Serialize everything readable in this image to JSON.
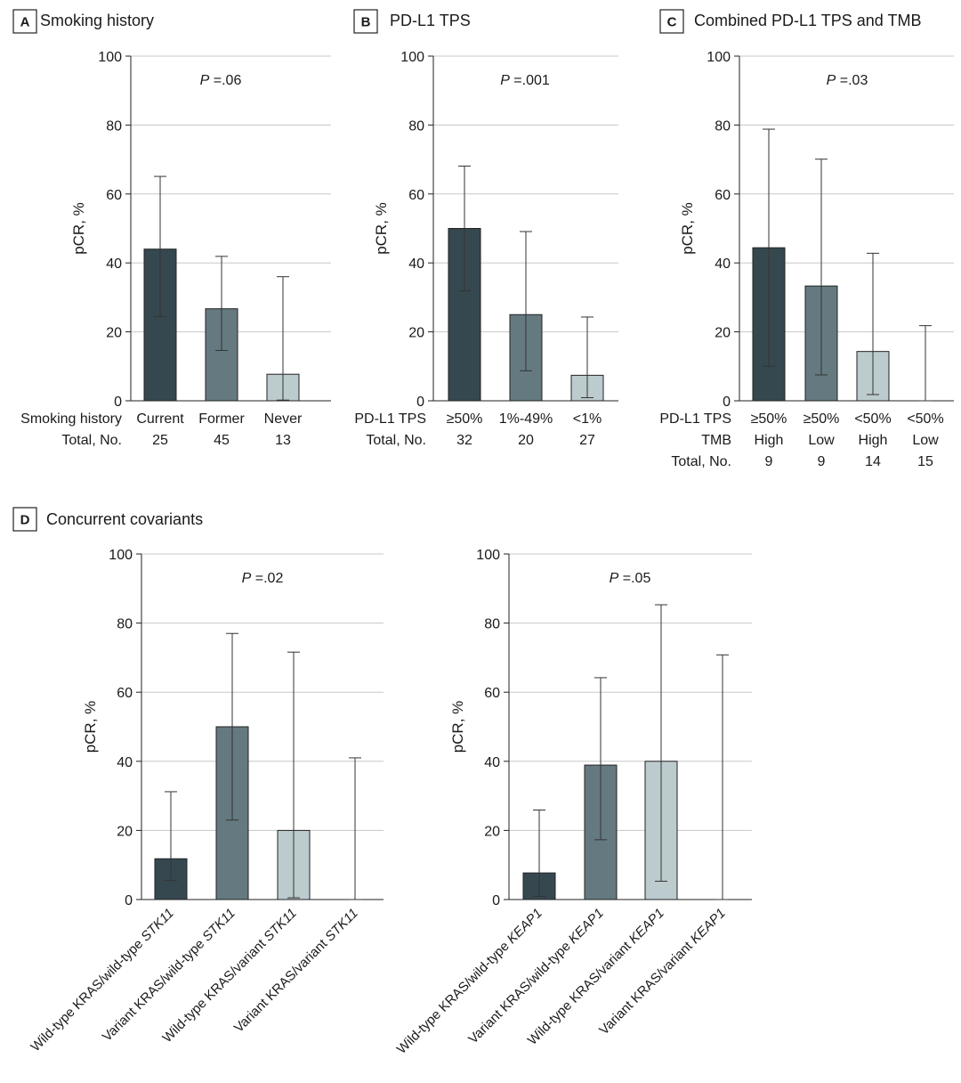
{
  "colors": {
    "dark": "#36484f",
    "mid": "#647a80",
    "light": "#bccbce"
  },
  "chart_data": [
    {
      "id": "A",
      "type": "bar",
      "panel_letter": "A",
      "title": "Smoking history",
      "ylabel": "pCR, %",
      "ylim": [
        0,
        100
      ],
      "yticks": [
        0,
        20,
        40,
        60,
        80,
        100
      ],
      "grid": true,
      "pvalue": {
        "p": "P",
        "rest": " =.06"
      },
      "row_labels": [
        "Smoking history",
        "Total, No."
      ],
      "categories": [
        "Current",
        "Former",
        "Never"
      ],
      "totals": [
        "25",
        "45",
        "13"
      ],
      "values": [
        44,
        26.7,
        7.7
      ],
      "ci_low": [
        24.4,
        14.6,
        0.2
      ],
      "ci_high": [
        65.1,
        41.9,
        36
      ],
      "colors": [
        "dark",
        "mid",
        "light"
      ]
    },
    {
      "id": "B",
      "type": "bar",
      "panel_letter": "B",
      "title": "PD-L1 TPS",
      "ylabel": "pCR, %",
      "ylim": [
        0,
        100
      ],
      "yticks": [
        0,
        20,
        40,
        60,
        80,
        100
      ],
      "grid": true,
      "pvalue": {
        "p": "P",
        "rest": " =.001"
      },
      "row_labels": [
        "PD-L1 TPS",
        "Total, No."
      ],
      "categories": [
        "≥50%",
        "1%-49%",
        "<1%"
      ],
      "totals": [
        "32",
        "20",
        "27"
      ],
      "values": [
        50,
        25,
        7.4
      ],
      "ci_low": [
        31.9,
        8.7,
        0.9
      ],
      "ci_high": [
        68.1,
        49.1,
        24.3
      ],
      "colors": [
        "dark",
        "mid",
        "light"
      ]
    },
    {
      "id": "C",
      "type": "bar",
      "panel_letter": "C",
      "title": "Combined PD-L1 TPS and TMB",
      "ylabel": "pCR, %",
      "ylim": [
        0,
        100
      ],
      "yticks": [
        0,
        20,
        40,
        60,
        80,
        100
      ],
      "grid": true,
      "pvalue": {
        "p": "P",
        "rest": " =.03"
      },
      "row_labels": [
        "PD-L1 TPS",
        "TMB",
        "Total, No."
      ],
      "categories": [
        "≥50%",
        "≥50%",
        "<50%",
        "<50%"
      ],
      "tmb": [
        "High",
        "Low",
        "High",
        "Low"
      ],
      "totals": [
        "9",
        "9",
        "14",
        "15"
      ],
      "values": [
        44.4,
        33.3,
        14.3,
        0
      ],
      "ci_low": [
        10,
        7.5,
        1.8,
        0
      ],
      "ci_high": [
        78.8,
        70.1,
        42.8,
        21.8
      ],
      "colors": [
        "dark",
        "mid",
        "light",
        "light"
      ]
    },
    {
      "id": "D1",
      "type": "bar",
      "panel_letter": "D",
      "title": "Concurrent covariants",
      "ylabel": "pCR, %",
      "ylim": [
        0,
        100
      ],
      "yticks": [
        0,
        20,
        40,
        60,
        80,
        100
      ],
      "grid": true,
      "pvalue": {
        "p": "P",
        "rest": " =.02"
      },
      "categories": [
        [
          {
            "t": "Wild-type KRAS/wild-type "
          },
          {
            "t": "STK11",
            "i": true
          }
        ],
        [
          {
            "t": "Variant KRAS/wild-type "
          },
          {
            "t": "STK11",
            "i": true
          }
        ],
        [
          {
            "t": "Wild-type KRAS/variant "
          },
          {
            "t": "STK11",
            "i": true
          }
        ],
        [
          {
            "t": "Variant KRAS/variant "
          },
          {
            "t": "STK11",
            "i": true
          }
        ]
      ],
      "values": [
        11.8,
        50,
        20,
        0
      ],
      "ci_low": [
        5.5,
        23,
        0.5,
        0
      ],
      "ci_high": [
        31.2,
        77,
        71.6,
        41
      ],
      "colors": [
        "dark",
        "mid",
        "light",
        "light"
      ]
    },
    {
      "id": "D2",
      "type": "bar",
      "ylabel": "pCR, %",
      "ylim": [
        0,
        100
      ],
      "yticks": [
        0,
        20,
        40,
        60,
        80,
        100
      ],
      "grid": true,
      "pvalue": {
        "p": "P",
        "rest": " =.05"
      },
      "categories": [
        [
          {
            "t": "Wild-type KRAS/wild-type "
          },
          {
            "t": "KEAP1",
            "i": true
          }
        ],
        [
          {
            "t": "Variant KRAS/wild-type "
          },
          {
            "t": "KEAP1",
            "i": true
          }
        ],
        [
          {
            "t": "Wild-type KRAS/variant "
          },
          {
            "t": "KEAP1",
            "i": true
          }
        ],
        [
          {
            "t": "Variant KRAS/variant "
          },
          {
            "t": "KEAP1",
            "i": true
          }
        ]
      ],
      "values": [
        7.7,
        38.9,
        40,
        0
      ],
      "ci_low": [
        0.9,
        17.3,
        5.3,
        0
      ],
      "ci_high": [
        25.9,
        64.2,
        85.3,
        70.8
      ],
      "colors": [
        "dark",
        "mid",
        "light",
        "light"
      ]
    }
  ]
}
